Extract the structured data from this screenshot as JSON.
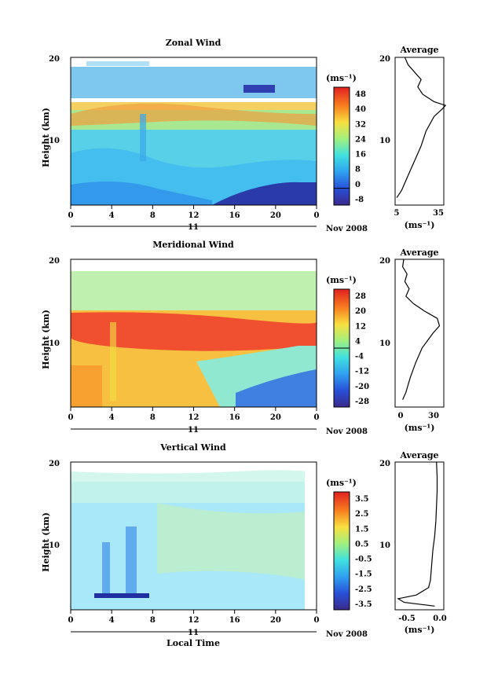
{
  "chart_data": [
    {
      "type": "heatmap",
      "title": "Zonal Wind",
      "ylabel": "Height (km)",
      "xlabel": "",
      "x_ticks": [
        "0",
        "4",
        "8",
        "12",
        "16",
        "20",
        "0"
      ],
      "y_ticks": [
        "10",
        "20"
      ],
      "ylim": [
        0,
        20
      ],
      "xlim": [
        0,
        24
      ],
      "date_label": "11",
      "date_suffix": "Nov 2008",
      "colorbar_unit": "(ms⁻¹)",
      "colorbar_ticks": [
        "48",
        "40",
        "32",
        "24",
        "16",
        "8",
        "0",
        "-8"
      ],
      "colorbar_range": [
        -8,
        48
      ],
      "colorbar_line": 0,
      "values_approx": {
        "height_km": [
          2,
          4,
          6,
          8,
          10,
          12,
          13,
          14,
          16,
          18,
          19
        ],
        "mean_wind": [
          10,
          14,
          18,
          20,
          24,
          28,
          34,
          30,
          16,
          10,
          8
        ]
      },
      "average_profile": {
        "title": "Average",
        "xlabel": "(ms⁻¹)",
        "x_ticks": [
          "5",
          "35"
        ],
        "xlim": [
          5,
          35
        ],
        "y_ticks": [
          "10",
          "20"
        ],
        "height_km": [
          1,
          2,
          4,
          6,
          8,
          10,
          12,
          13,
          13.5,
          14,
          15,
          16,
          17,
          18,
          19,
          20
        ],
        "values": [
          6,
          9,
          13,
          17,
          21,
          24,
          29,
          34,
          36,
          29,
          22,
          19,
          21,
          17,
          13,
          11
        ]
      }
    },
    {
      "type": "heatmap",
      "title": "Meridional Wind",
      "ylabel": "Height (km)",
      "xlabel": "",
      "x_ticks": [
        "0",
        "4",
        "8",
        "12",
        "16",
        "20",
        "0"
      ],
      "y_ticks": [
        "10",
        "20"
      ],
      "ylim": [
        0,
        20
      ],
      "xlim": [
        0,
        24
      ],
      "date_label": "11",
      "date_suffix": "Nov 2008",
      "colorbar_unit": "(ms⁻¹)",
      "colorbar_ticks": [
        "28",
        "20",
        "12",
        "4",
        "-4",
        "-12",
        "-20",
        "-28"
      ],
      "colorbar_range": [
        -28,
        28
      ],
      "colorbar_line": 0,
      "values_approx": {
        "height_km": [
          2,
          4,
          6,
          8,
          10,
          11,
          12,
          14,
          16,
          18
        ],
        "mean_wind": [
          8,
          10,
          14,
          18,
          24,
          28,
          26,
          6,
          4,
          2
        ]
      },
      "average_profile": {
        "title": "Average",
        "xlabel": "(ms⁻¹)",
        "x_ticks": [
          "0",
          "30"
        ],
        "xlim": [
          -5,
          40
        ],
        "y_ticks": [
          "10",
          "20"
        ],
        "height_km": [
          1,
          2,
          4,
          6,
          8,
          10,
          11,
          12,
          13,
          14,
          15,
          16,
          17,
          18,
          19,
          20
        ],
        "values": [
          2,
          5,
          9,
          14,
          20,
          30,
          36,
          34,
          22,
          12,
          5,
          8,
          4,
          6,
          2,
          3
        ]
      }
    },
    {
      "type": "heatmap",
      "title": "Vertical Wind",
      "ylabel": "Height (km)",
      "xlabel": "Local Time",
      "x_ticks": [
        "0",
        "4",
        "8",
        "12",
        "16",
        "20",
        "0"
      ],
      "y_ticks": [
        "10",
        "20"
      ],
      "ylim": [
        0,
        20
      ],
      "xlim": [
        0,
        24
      ],
      "date_label": "11",
      "date_suffix": "Nov 2008",
      "colorbar_unit": "(ms⁻¹)",
      "colorbar_ticks": [
        "3.5",
        "2.5",
        "1.5",
        "0.5",
        "-0.5",
        "-1.5",
        "-2.5",
        "-3.5"
      ],
      "colorbar_range": [
        -4,
        4
      ],
      "colorbar_line": null,
      "values_approx": {
        "height_km": [
          1,
          2,
          4,
          8,
          12,
          16,
          19
        ],
        "mean_wind": [
          -0.6,
          -0.4,
          -0.2,
          -0.1,
          0.1,
          0.15,
          0.2
        ]
      },
      "average_profile": {
        "title": "Average",
        "xlabel": "(ms⁻¹)",
        "x_ticks": [
          "-0.5",
          "0.0"
        ],
        "xlim": [
          -0.7,
          0.1
        ],
        "y_ticks": [
          "10",
          "20"
        ],
        "height_km": [
          0.5,
          1,
          1.5,
          2,
          3,
          4,
          6,
          8,
          10,
          12,
          14,
          16,
          18,
          20
        ],
        "values": [
          -0.05,
          -0.55,
          -0.65,
          -0.35,
          -0.15,
          -0.12,
          -0.1,
          -0.08,
          -0.05,
          -0.03,
          -0.02,
          -0.01,
          -0.01,
          -0.02
        ]
      }
    }
  ]
}
